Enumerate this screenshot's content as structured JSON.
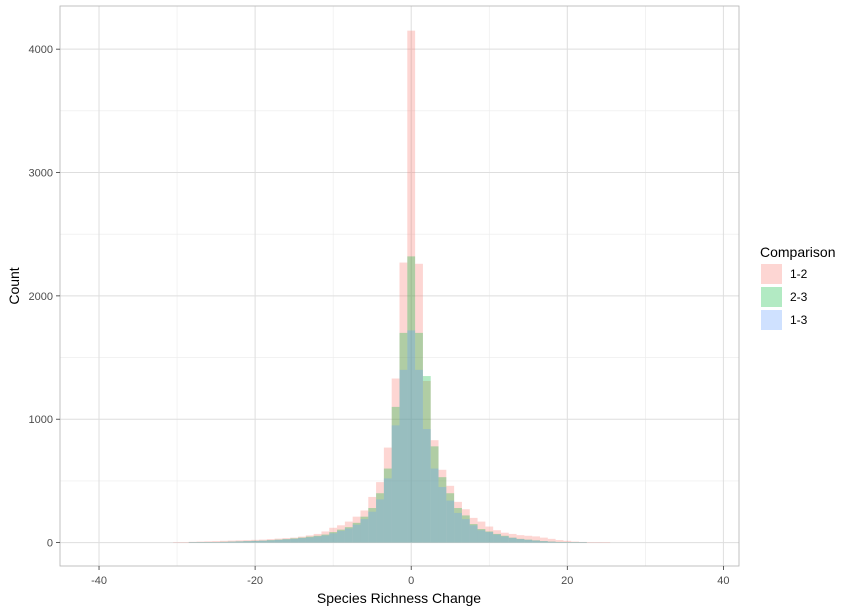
{
  "chart_data": {
    "type": "bar",
    "subtype": "overlapping-histogram",
    "title": "",
    "xlabel": "Species Richness Change",
    "ylabel": "Count",
    "xlim": [
      -45,
      42
    ],
    "ylim": [
      -190,
      4350
    ],
    "x_ticks": [
      -40,
      -20,
      0,
      20,
      40
    ],
    "y_ticks": [
      0,
      1000,
      2000,
      3000,
      4000
    ],
    "grid": true,
    "bin_width": 1,
    "legend": {
      "title": "Comparison",
      "position": "right"
    },
    "x": [
      -30,
      -29,
      -28,
      -27,
      -26,
      -25,
      -24,
      -23,
      -22,
      -21,
      -20,
      -19,
      -18,
      -17,
      -16,
      -15,
      -14,
      -13,
      -12,
      -11,
      -10,
      -9,
      -8,
      -7,
      -6,
      -5,
      -4,
      -3,
      -2,
      -1,
      0,
      1,
      2,
      3,
      4,
      5,
      6,
      7,
      8,
      9,
      10,
      11,
      12,
      13,
      14,
      15,
      16,
      17,
      18,
      19,
      20,
      21,
      22,
      23,
      24,
      25
    ],
    "series": [
      {
        "name": "1-2",
        "color": "#F8766D",
        "values": [
          2,
          4,
          6,
          8,
          10,
          12,
          14,
          16,
          18,
          20,
          22,
          24,
          28,
          32,
          36,
          40,
          48,
          58,
          70,
          90,
          120,
          140,
          170,
          210,
          260,
          370,
          490,
          770,
          1330,
          2270,
          4150,
          2260,
          1310,
          830,
          590,
          460,
          330,
          270,
          200,
          170,
          130,
          100,
          80,
          70,
          60,
          55,
          50,
          40,
          30,
          20,
          14,
          8,
          5,
          3,
          2,
          1
        ]
      },
      {
        "name": "2-3",
        "color": "#00BA38",
        "values": [
          0,
          0,
          1,
          2,
          3,
          4,
          6,
          8,
          10,
          12,
          14,
          16,
          20,
          24,
          28,
          34,
          40,
          48,
          55,
          65,
          85,
          105,
          125,
          160,
          210,
          280,
          400,
          600,
          1100,
          1700,
          2320,
          1700,
          1350,
          780,
          530,
          400,
          280,
          220,
          150,
          110,
          90,
          70,
          55,
          40,
          30,
          24,
          18,
          12,
          8,
          5,
          3,
          2,
          1,
          0,
          0,
          0
        ]
      },
      {
        "name": "1-3",
        "color": "#619CFF",
        "values": [
          0,
          0,
          1,
          2,
          3,
          4,
          5,
          7,
          9,
          11,
          13,
          15,
          18,
          22,
          26,
          30,
          36,
          42,
          50,
          58,
          75,
          95,
          115,
          145,
          190,
          250,
          350,
          520,
          950,
          1400,
          1720,
          1400,
          920,
          600,
          450,
          340,
          240,
          190,
          140,
          100,
          85,
          65,
          50,
          38,
          28,
          22,
          16,
          11,
          7,
          4,
          3,
          2,
          1,
          0,
          0,
          0
        ]
      }
    ]
  }
}
